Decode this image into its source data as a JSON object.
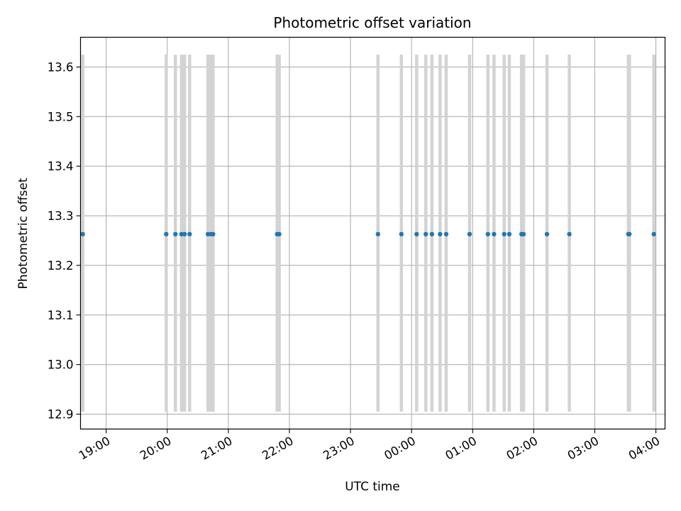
{
  "chart_data": {
    "type": "scatter",
    "title": "Photometric offset variation",
    "xlabel": "UTC time",
    "ylabel": "Photometric offset",
    "x_ticks": [
      "19:00",
      "20:00",
      "21:00",
      "22:00",
      "23:00",
      "00:00",
      "01:00",
      "02:00",
      "03:00",
      "04:00"
    ],
    "x_tick_hours": [
      19,
      20,
      21,
      22,
      23,
      24,
      25,
      26,
      27,
      28
    ],
    "xlim": [
      "18:35",
      "04:09"
    ],
    "xlim_hours": [
      18.58,
      28.15
    ],
    "y_ticks": [
      "12.9",
      "13.0",
      "13.1",
      "13.2",
      "13.3",
      "13.4",
      "13.5",
      "13.6"
    ],
    "ylim": [
      12.87,
      13.66
    ],
    "grid": true,
    "errorbar_range": [
      12.905,
      13.625
    ],
    "colors": {
      "point": "#1f77b4",
      "errorbar": "#d3d3d3",
      "grid": "#b0b0b0"
    },
    "points": [
      {
        "x": "18:37",
        "y": 13.263
      },
      {
        "x": "19:59",
        "y": 13.263
      },
      {
        "x": "20:08",
        "y": 13.263
      },
      {
        "x": "20:14",
        "y": 13.263
      },
      {
        "x": "20:17",
        "y": 13.263
      },
      {
        "x": "20:22",
        "y": 13.263
      },
      {
        "x": "20:40",
        "y": 13.263
      },
      {
        "x": "20:43",
        "y": 13.263
      },
      {
        "x": "20:45",
        "y": 13.263
      },
      {
        "x": "21:48",
        "y": 13.263
      },
      {
        "x": "21:50",
        "y": 13.263
      },
      {
        "x": "23:27",
        "y": 13.263
      },
      {
        "x": "23:50",
        "y": 13.263
      },
      {
        "x": "00:05",
        "y": 13.263
      },
      {
        "x": "00:14",
        "y": 13.263
      },
      {
        "x": "00:20",
        "y": 13.263
      },
      {
        "x": "00:28",
        "y": 13.263
      },
      {
        "x": "00:34",
        "y": 13.263
      },
      {
        "x": "00:57",
        "y": 13.263
      },
      {
        "x": "01:15",
        "y": 13.263
      },
      {
        "x": "01:21",
        "y": 13.263
      },
      {
        "x": "01:31",
        "y": 13.263
      },
      {
        "x": "01:36",
        "y": 13.263
      },
      {
        "x": "01:48",
        "y": 13.263
      },
      {
        "x": "01:50",
        "y": 13.263
      },
      {
        "x": "02:13",
        "y": 13.263
      },
      {
        "x": "02:35",
        "y": 13.263
      },
      {
        "x": "03:33",
        "y": 13.263
      },
      {
        "x": "03:34",
        "y": 13.263
      },
      {
        "x": "03:58",
        "y": 13.263
      }
    ]
  }
}
